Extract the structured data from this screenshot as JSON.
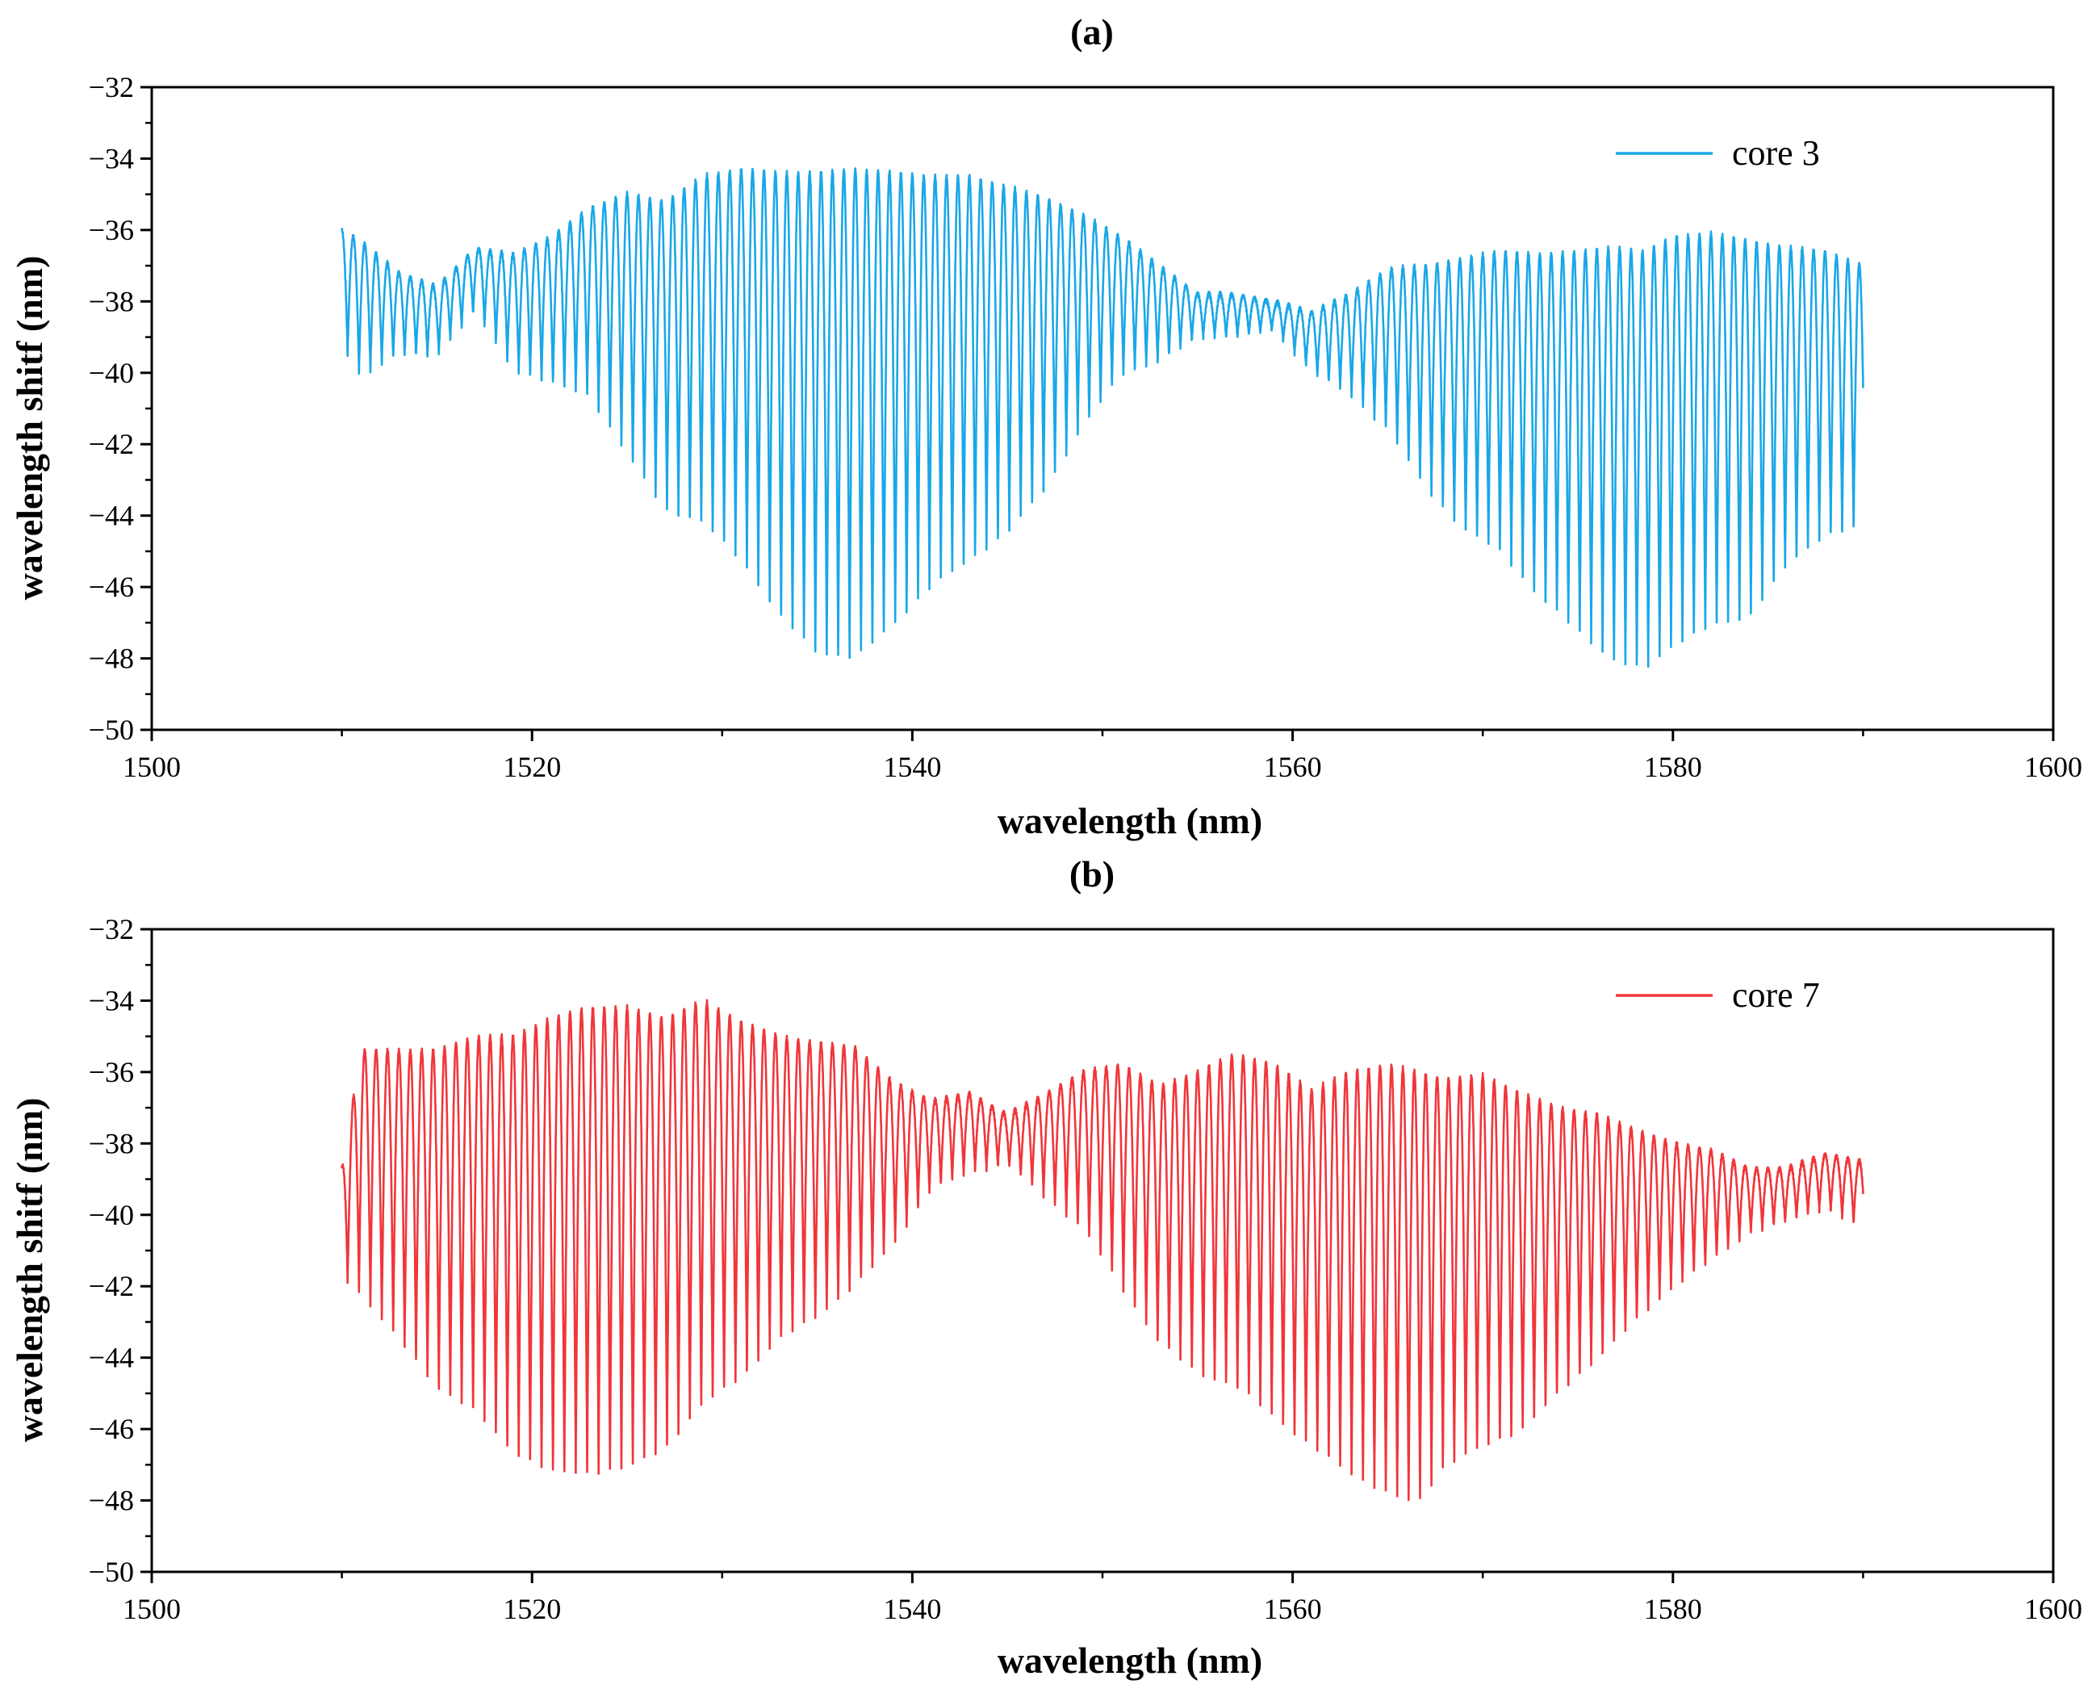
{
  "chart_data": [
    {
      "type": "line",
      "panel": "(a)",
      "xlabel": "wavelength (nm)",
      "ylabel": "wavelength shitf  (nm)",
      "xlim": [
        1500,
        1600
      ],
      "ylim": [
        -50,
        -32
      ],
      "xticks": [
        1500,
        1520,
        1540,
        1560,
        1580,
        1600
      ],
      "xtick_labels": [
        "1500",
        "1520",
        "1540",
        "1560",
        "1580",
        "1600"
      ],
      "yticks": [
        -32,
        -34,
        -36,
        -38,
        -40,
        -42,
        -44,
        -46,
        -48,
        -50
      ],
      "ytick_labels": [
        "−32",
        "−34",
        "−36",
        "−38",
        "−40",
        "−42",
        "−44",
        "−46",
        "−48",
        "−50"
      ],
      "legend_position": "top-right",
      "series": [
        {
          "name": "core 3",
          "color": "#1aa7e8",
          "x_range": [
            1510,
            1590
          ],
          "fringe_period_nm": 0.6,
          "envelope_x": [
            1510,
            1511,
            1513,
            1515,
            1517,
            1519,
            1521,
            1523,
            1525,
            1527,
            1529,
            1531,
            1533,
            1535,
            1537,
            1539,
            1541,
            1543,
            1545,
            1547,
            1549,
            1551,
            1553,
            1555,
            1557,
            1559,
            1561,
            1563,
            1565,
            1567,
            1569,
            1571,
            1573,
            1575,
            1577,
            1578.5,
            1580,
            1582,
            1584,
            1586,
            1588,
            1590
          ],
          "upper_envelope": [
            -36.0,
            -36.3,
            -37.2,
            -37.6,
            -36.5,
            -36.7,
            -36.2,
            -35.4,
            -35.0,
            -35.2,
            -34.5,
            -34.3,
            -34.4,
            -34.4,
            -34.3,
            -34.4,
            -34.5,
            -34.5,
            -34.8,
            -35.1,
            -35.6,
            -36.2,
            -37.0,
            -37.8,
            -37.8,
            -38.0,
            -38.3,
            -37.8,
            -37.1,
            -37.0,
            -36.8,
            -36.6,
            -36.7,
            -36.6,
            -36.5,
            -36.6,
            -36.2,
            -36.1,
            -36.3,
            -36.5,
            -36.6,
            -37.0
          ],
          "lower_envelope": [
            -39.2,
            -40.1,
            -39.5,
            -39.5,
            -38.3,
            -39.9,
            -40.3,
            -40.6,
            -42.3,
            -43.8,
            -44.2,
            -45.2,
            -46.8,
            -47.8,
            -48.0,
            -47.0,
            -46.0,
            -45.2,
            -44.5,
            -43.2,
            -41.5,
            -40.0,
            -39.7,
            -39.0,
            -39.0,
            -38.8,
            -40.0,
            -40.6,
            -41.6,
            -43.2,
            -44.4,
            -45.0,
            -46.3,
            -47.2,
            -48.1,
            -48.3,
            -47.6,
            -47.1,
            -46.8,
            -45.4,
            -44.5,
            -44.3
          ]
        }
      ]
    },
    {
      "type": "line",
      "panel": "(b)",
      "xlabel": "wavelength (nm)",
      "ylabel": "wavelength shitf  (nm)",
      "xlim": [
        1500,
        1600
      ],
      "ylim": [
        -50,
        -32
      ],
      "xticks": [
        1500,
        1520,
        1540,
        1560,
        1580,
        1600
      ],
      "xtick_labels": [
        "1500",
        "1520",
        "1540",
        "1560",
        "1580",
        "1600"
      ],
      "yticks": [
        -32,
        -34,
        -36,
        -38,
        -40,
        -42,
        -44,
        -46,
        -48,
        -50
      ],
      "ytick_labels": [
        "−32",
        "−34",
        "−36",
        "−38",
        "−40",
        "−42",
        "−44",
        "−46",
        "−48",
        "−50"
      ],
      "legend_position": "top-right",
      "series": [
        {
          "name": "core 7",
          "color": "#f0363a",
          "x_range": [
            1510,
            1590
          ],
          "fringe_period_nm": 0.6,
          "envelope_x": [
            1510,
            1511,
            1513,
            1515,
            1517,
            1519,
            1521,
            1523,
            1525,
            1527,
            1529,
            1531,
            1533,
            1535,
            1537,
            1539,
            1541,
            1543,
            1545,
            1547,
            1549,
            1551,
            1553,
            1555,
            1557,
            1559,
            1561,
            1563,
            1565,
            1566.5,
            1568,
            1570,
            1572,
            1574,
            1576,
            1578,
            1580,
            1582,
            1584,
            1586,
            1588,
            1590
          ],
          "upper_envelope": [
            -38.7,
            -35.4,
            -35.4,
            -35.4,
            -35.0,
            -35.0,
            -34.5,
            -34.2,
            -34.2,
            -34.5,
            -34.0,
            -34.6,
            -35.0,
            -35.2,
            -35.3,
            -36.3,
            -36.8,
            -36.6,
            -37.2,
            -36.6,
            -36.0,
            -35.8,
            -36.4,
            -36.0,
            -35.5,
            -35.8,
            -36.5,
            -36.0,
            -35.8,
            -36.0,
            -36.2,
            -36.1,
            -36.6,
            -37.0,
            -37.2,
            -37.6,
            -38.0,
            -38.2,
            -38.7,
            -38.7,
            -38.3,
            -38.5
          ],
          "lower_envelope": [
            -41.7,
            -42.2,
            -43.5,
            -44.8,
            -45.5,
            -46.6,
            -47.2,
            -47.2,
            -47.1,
            -46.5,
            -45.3,
            -44.5,
            -43.5,
            -42.8,
            -42.0,
            -40.8,
            -39.3,
            -38.8,
            -38.6,
            -39.5,
            -40.4,
            -42.0,
            -43.6,
            -44.4,
            -44.8,
            -45.6,
            -46.5,
            -47.2,
            -47.8,
            -48.1,
            -47.0,
            -46.5,
            -46.0,
            -45.0,
            -44.0,
            -43.0,
            -42.0,
            -41.3,
            -40.5,
            -40.2,
            -39.8,
            -40.4
          ]
        }
      ]
    }
  ]
}
